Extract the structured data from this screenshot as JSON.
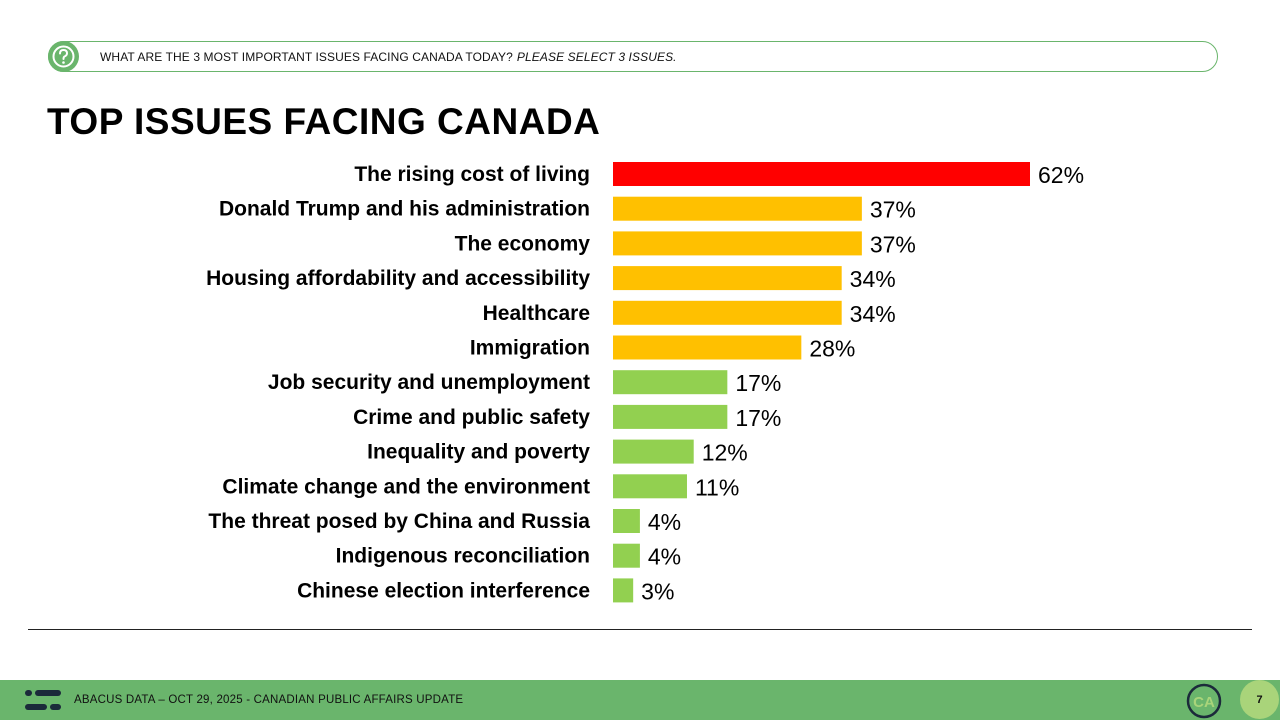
{
  "question": {
    "text": "WHAT ARE THE 3 MOST IMPORTANT ISSUES FACING CANADA TODAY?",
    "instruction": "PLEASE SELECT 3 ISSUES.",
    "icon": "question-mark-icon"
  },
  "chart_data": {
    "type": "bar",
    "orientation": "horizontal",
    "title": "TOP ISSUES FACING CANADA",
    "categories": [
      "The rising cost of living",
      "Donald Trump and his administration",
      "The economy",
      "Housing affordability and accessibility",
      "Healthcare",
      "Immigration",
      "Job security and unemployment",
      "Crime and public safety",
      "Inequality and poverty",
      "Climate change and the environment",
      "The threat posed by China and Russia",
      "Indigenous reconciliation",
      "Chinese election interference"
    ],
    "values": [
      62,
      37,
      37,
      34,
      34,
      28,
      17,
      17,
      12,
      11,
      4,
      4,
      3
    ],
    "value_labels": [
      "62%",
      "37%",
      "37%",
      "34%",
      "34%",
      "28%",
      "17%",
      "17%",
      "12%",
      "11%",
      "4%",
      "4%",
      "3%"
    ],
    "bar_colors": [
      "#ff0000",
      "#ffc000",
      "#ffc000",
      "#ffc000",
      "#ffc000",
      "#ffc000",
      "#92d050",
      "#92d050",
      "#92d050",
      "#92d050",
      "#92d050",
      "#92d050",
      "#92d050"
    ],
    "xlim": [
      0,
      100
    ],
    "grid": false,
    "xlabel": "",
    "ylabel": ""
  },
  "footer": {
    "text": "ABACUS DATA – OCT 29, 2025 - CANADIAN PUBLIC AFFAIRS UPDATE",
    "badge_text": "CA",
    "page_number": "7"
  },
  "colors": {
    "brand_green": "#6ab56c",
    "page_number_bg": "#a9d47a"
  }
}
